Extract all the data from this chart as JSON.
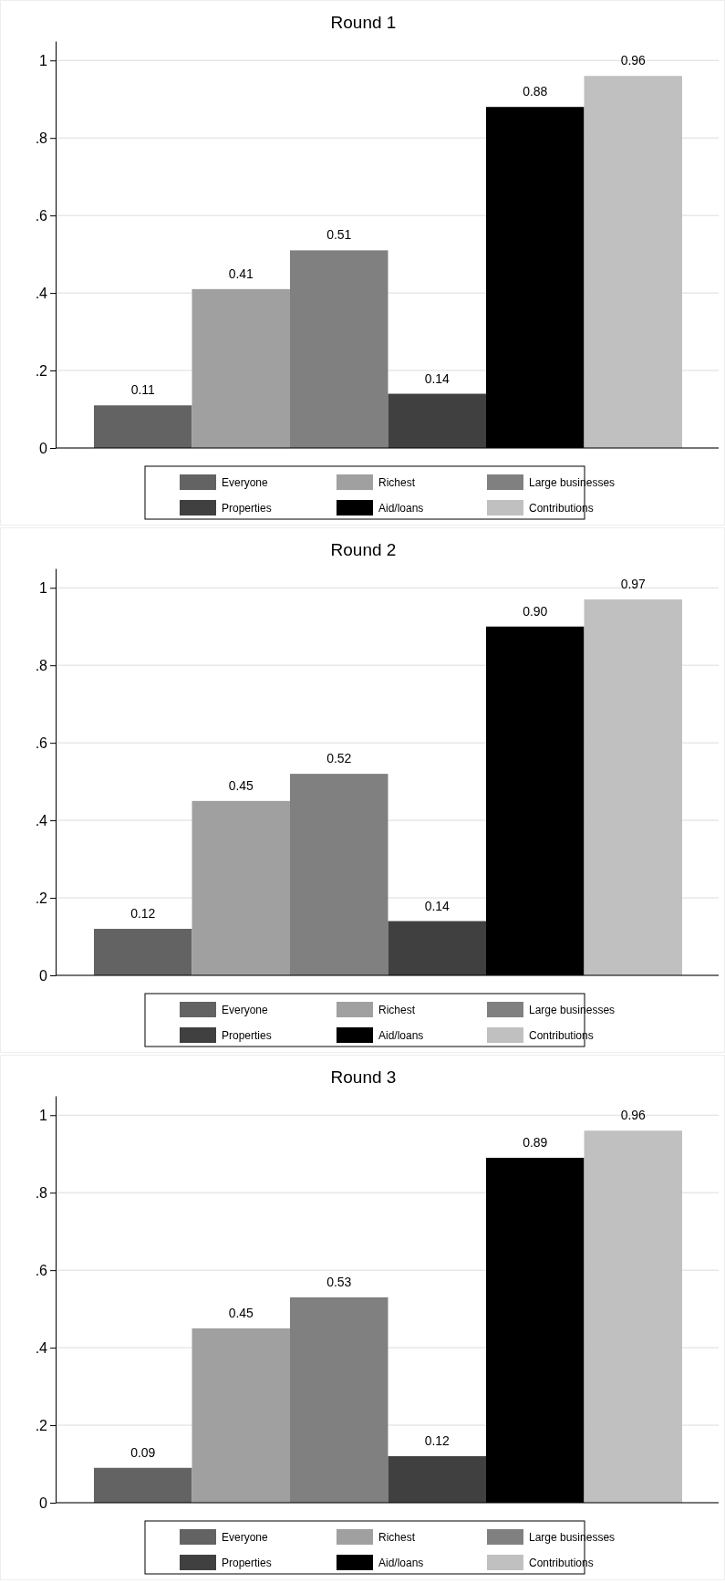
{
  "chart_data": [
    {
      "type": "bar",
      "title": "Round 1",
      "categories": [
        null
      ],
      "ylim": [
        0,
        1.05
      ],
      "yticks": [
        {
          "value": 0,
          "label": "0"
        },
        {
          "value": 0.2,
          "label": ".2"
        },
        {
          "value": 0.4,
          "label": ".4"
        },
        {
          "value": 0.6,
          "label": ".6"
        },
        {
          "value": 0.8,
          "label": ".8"
        },
        {
          "value": 1,
          "label": "1"
        }
      ],
      "grid": "y",
      "legend": "bottom",
      "series": [
        {
          "name": "Everyone",
          "color": "#636363",
          "values": [
            0.11
          ],
          "value_labels": [
            "0.11"
          ]
        },
        {
          "name": "Richest",
          "color": "#a0a0a0",
          "values": [
            0.41
          ],
          "value_labels": [
            "0.41"
          ]
        },
        {
          "name": "Large businesses",
          "color": "#808080",
          "values": [
            0.51
          ],
          "value_labels": [
            "0.51"
          ]
        },
        {
          "name": "Properties",
          "color": "#404040",
          "values": [
            0.14
          ],
          "value_labels": [
            "0.14"
          ]
        },
        {
          "name": "Aid/loans",
          "color": "#000000",
          "values": [
            0.88
          ],
          "value_labels": [
            "0.88"
          ]
        },
        {
          "name": "Contributions",
          "color": "#c0c0c0",
          "values": [
            0.96
          ],
          "value_labels": [
            "0.96"
          ]
        }
      ]
    },
    {
      "type": "bar",
      "title": "Round 2",
      "categories": [
        null
      ],
      "ylim": [
        0,
        1.05
      ],
      "yticks": [
        {
          "value": 0,
          "label": "0"
        },
        {
          "value": 0.2,
          "label": ".2"
        },
        {
          "value": 0.4,
          "label": ".4"
        },
        {
          "value": 0.6,
          "label": ".6"
        },
        {
          "value": 0.8,
          "label": ".8"
        },
        {
          "value": 1,
          "label": "1"
        }
      ],
      "grid": "y",
      "legend": "bottom",
      "series": [
        {
          "name": "Everyone",
          "color": "#636363",
          "values": [
            0.12
          ],
          "value_labels": [
            "0.12"
          ]
        },
        {
          "name": "Richest",
          "color": "#a0a0a0",
          "values": [
            0.45
          ],
          "value_labels": [
            "0.45"
          ]
        },
        {
          "name": "Large businesses",
          "color": "#808080",
          "values": [
            0.52
          ],
          "value_labels": [
            "0.52"
          ]
        },
        {
          "name": "Properties",
          "color": "#404040",
          "values": [
            0.14
          ],
          "value_labels": [
            "0.14"
          ]
        },
        {
          "name": "Aid/loans",
          "color": "#000000",
          "values": [
            0.9
          ],
          "value_labels": [
            "0.90"
          ]
        },
        {
          "name": "Contributions",
          "color": "#c0c0c0",
          "values": [
            0.97
          ],
          "value_labels": [
            "0.97"
          ]
        }
      ]
    },
    {
      "type": "bar",
      "title": "Round 3",
      "categories": [
        null
      ],
      "ylim": [
        0,
        1.05
      ],
      "yticks": [
        {
          "value": 0,
          "label": "0"
        },
        {
          "value": 0.2,
          "label": ".2"
        },
        {
          "value": 0.4,
          "label": ".4"
        },
        {
          "value": 0.6,
          "label": ".6"
        },
        {
          "value": 0.8,
          "label": ".8"
        },
        {
          "value": 1,
          "label": "1"
        }
      ],
      "grid": "y",
      "legend": "bottom",
      "series": [
        {
          "name": "Everyone",
          "color": "#636363",
          "values": [
            0.09
          ],
          "value_labels": [
            "0.09"
          ]
        },
        {
          "name": "Richest",
          "color": "#a0a0a0",
          "values": [
            0.45
          ],
          "value_labels": [
            "0.45"
          ]
        },
        {
          "name": "Large businesses",
          "color": "#808080",
          "values": [
            0.53
          ],
          "value_labels": [
            "0.53"
          ]
        },
        {
          "name": "Properties",
          "color": "#404040",
          "values": [
            0.12
          ],
          "value_labels": [
            "0.12"
          ]
        },
        {
          "name": "Aid/loans",
          "color": "#000000",
          "values": [
            0.89
          ],
          "value_labels": [
            "0.89"
          ]
        },
        {
          "name": "Contributions",
          "color": "#c0c0c0",
          "values": [
            0.96
          ],
          "value_labels": [
            "0.96"
          ]
        }
      ]
    }
  ]
}
